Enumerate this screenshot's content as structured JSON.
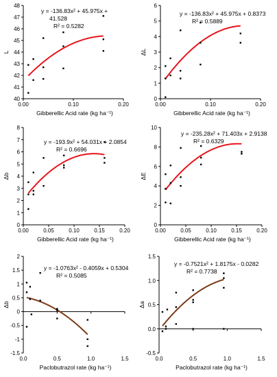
{
  "chart_data": [
    {
      "type": "scatter",
      "panel": "L",
      "xlabel": "Gibberellic Acid rate (kg ha⁻¹)",
      "ylabel": "L",
      "xlim": [
        0,
        0.2
      ],
      "ylim": [
        40,
        48
      ],
      "xticks": [
        0,
        0.1,
        0.2
      ],
      "xtick_labels": [
        "0.00",
        "0.10",
        "0.20"
      ],
      "yticks": [
        40,
        41,
        42,
        43,
        44,
        45,
        46,
        47,
        48
      ],
      "ytick_labels": [
        "40",
        "41",
        "42",
        "43",
        "44",
        "45",
        "46",
        "47",
        "48"
      ],
      "equation": [
        "y = -136.83x² + 45.975x +",
        "41.528"
      ],
      "r2": "R² = 0.5282",
      "fit": {
        "a": -136.83,
        "b": 45.975,
        "c": 41.528,
        "x": [
          0.01,
          0.16
        ],
        "color": "#e8141b"
      },
      "points": [
        [
          0.01,
          40.5
        ],
        [
          0.01,
          42.9
        ],
        [
          0.02,
          41.6
        ],
        [
          0.02,
          43.4
        ],
        [
          0.04,
          41.7
        ],
        [
          0.04,
          42.7
        ],
        [
          0.04,
          45.2
        ],
        [
          0.08,
          42.6
        ],
        [
          0.08,
          44.5
        ],
        [
          0.08,
          45.7
        ],
        [
          0.16,
          44.1
        ],
        [
          0.16,
          45.1
        ],
        [
          0.16,
          47.1
        ]
      ]
    },
    {
      "type": "scatter",
      "panel": "ΔL",
      "xlabel": "Gibberellic Acid rate (kg ha⁻¹)",
      "ylabel": "ΔL",
      "xlim": [
        0,
        0.2
      ],
      "ylim": [
        0,
        6
      ],
      "xticks": [
        0,
        0.1,
        0.2
      ],
      "xtick_labels": [
        "0.00",
        "0.10",
        "0.20"
      ],
      "yticks": [
        0,
        1,
        2,
        3,
        4,
        5,
        6
      ],
      "ytick_labels": [
        "0",
        "1",
        "2",
        "3",
        "4",
        "5",
        "6"
      ],
      "equation": [
        "y = -136.83x² + 45.975x + 0.8373"
      ],
      "r2": "R² = 0.5889",
      "fit": {
        "a": -136.83,
        "b": 45.975,
        "c": 0.8373,
        "x": [
          0.01,
          0.16
        ],
        "color": "#e8141b"
      },
      "points": [
        [
          0.01,
          0.1
        ],
        [
          0.01,
          1.3
        ],
        [
          0.01,
          2.1
        ],
        [
          0.02,
          1.5
        ],
        [
          0.02,
          2.6
        ],
        [
          0.04,
          1.3
        ],
        [
          0.04,
          1.8
        ],
        [
          0.04,
          4.4
        ],
        [
          0.08,
          2.2
        ],
        [
          0.08,
          3.6
        ],
        [
          0.08,
          4.9
        ],
        [
          0.16,
          3.6
        ],
        [
          0.16,
          4.2
        ]
      ]
    },
    {
      "type": "scatter",
      "panel": "Δb",
      "xlabel": "Gibberellic Acid rate (kg ha⁻¹)",
      "ylabel": "Δb",
      "xlim": [
        0,
        0.2
      ],
      "ylim": [
        0,
        8
      ],
      "xticks": [
        0,
        0.05,
        0.1,
        0.15,
        0.2
      ],
      "xtick_labels": [
        "0.00",
        "0.05",
        "0.10",
        "0.15",
        "0.20"
      ],
      "yticks": [
        0,
        1,
        2,
        3,
        4,
        5,
        6,
        7,
        8
      ],
      "ytick_labels": [
        "0",
        "1",
        "2",
        "3",
        "4",
        "5",
        "6",
        "7",
        "8"
      ],
      "equation": [
        "y = -193.9x² + 54.031x + 2.0854"
      ],
      "r2": "R² = 0.6696",
      "fit": {
        "a": -193.9,
        "b": 54.031,
        "c": 2.0854,
        "x": [
          0.01,
          0.16
        ],
        "color": "#e8141b"
      },
      "points": [
        [
          0.01,
          1.3
        ],
        [
          0.01,
          2.5
        ],
        [
          0.01,
          3.5
        ],
        [
          0.02,
          2.5
        ],
        [
          0.02,
          2.8
        ],
        [
          0.02,
          4.3
        ],
        [
          0.04,
          3.2
        ],
        [
          0.04,
          5.5
        ],
        [
          0.08,
          4.7
        ],
        [
          0.08,
          4.9
        ],
        [
          0.08,
          5.7
        ],
        [
          0.16,
          5.1
        ],
        [
          0.16,
          5.5
        ],
        [
          0.16,
          6.8
        ]
      ]
    },
    {
      "type": "scatter",
      "panel": "ΔE",
      "xlabel": "Gibberellic Acid rate (kg ha⁻¹)",
      "ylabel": "ΔE",
      "xlim": [
        0,
        0.2
      ],
      "ylim": [
        0,
        10
      ],
      "xticks": [
        0,
        0.05,
        0.1,
        0.15,
        0.2
      ],
      "xtick_labels": [
        "0.00",
        "0.05",
        "0.10",
        "0.15",
        "0.20"
      ],
      "yticks": [
        0,
        2,
        4,
        6,
        8,
        10
      ],
      "ytick_labels": [
        "0",
        "2",
        "4",
        "6",
        "8",
        "10"
      ],
      "equation": [
        "y = -235.28x² + 71.403x + 2.9138"
      ],
      "r2": "R² = 0.6329",
      "fit": {
        "a": -235.28,
        "b": 71.403,
        "c": 2.9138,
        "x": [
          0.01,
          0.16
        ],
        "color": "#e8141b"
      },
      "points": [
        [
          0.01,
          2.3
        ],
        [
          0.01,
          3.7
        ],
        [
          0.01,
          5.2
        ],
        [
          0.02,
          2.2
        ],
        [
          0.02,
          4.3
        ],
        [
          0.02,
          6.1
        ],
        [
          0.04,
          4.0
        ],
        [
          0.04,
          4.9
        ],
        [
          0.04,
          7.9
        ],
        [
          0.08,
          6.2
        ],
        [
          0.08,
          6.9
        ],
        [
          0.08,
          8.1
        ],
        [
          0.16,
          7.3
        ],
        [
          0.16,
          7.5
        ]
      ]
    },
    {
      "type": "scatter",
      "panel": "Δb",
      "xlabel": "Paclobutrazol rate (kg ha⁻¹)",
      "ylabel": "Δb",
      "xlim": [
        0,
        1.5
      ],
      "ylim": [
        -1.5,
        2
      ],
      "xticks": [
        0,
        0.5,
        1,
        1.5
      ],
      "xtick_labels": [
        "0.0",
        "0.5",
        "1.0",
        "1.5"
      ],
      "yticks": [
        -1.5,
        -1,
        -0.5,
        0,
        0.5,
        1,
        1.5,
        2
      ],
      "ytick_labels": [
        "-1.5",
        "-1",
        "-0.5",
        "0",
        "0.5",
        "1",
        "1.5",
        "2"
      ],
      "equation": [
        "y = -1.0763x² - 0.4059x + 0.5304"
      ],
      "r2": "R² = 0.5085",
      "fit": {
        "a": -1.0763,
        "b": -0.4059,
        "c": 0.5304,
        "x": [
          0.05,
          0.95
        ],
        "color": "#7b3a17"
      },
      "points": [
        [
          0.05,
          -0.55
        ],
        [
          0.05,
          0.7
        ],
        [
          0.05,
          1.05
        ],
        [
          0.1,
          0.45
        ],
        [
          0.1,
          0.9
        ],
        [
          0.12,
          -0.1
        ],
        [
          0.25,
          0.4
        ],
        [
          0.25,
          1.4
        ],
        [
          0.5,
          -0.25
        ],
        [
          0.5,
          0.05
        ],
        [
          0.5,
          0.1
        ],
        [
          0.95,
          -1.25
        ],
        [
          0.95,
          -1.0
        ],
        [
          0.95,
          -0.3
        ]
      ]
    },
    {
      "type": "scatter",
      "panel": "Δa",
      "xlabel": "Paclobutrazol rate (kg ha⁻¹)",
      "ylabel": "Δa",
      "xlim": [
        0,
        1.5
      ],
      "ylim": [
        -0.5,
        1.5
      ],
      "xticks": [
        0,
        0.5,
        1,
        1.5
      ],
      "xtick_labels": [
        "0.0",
        "0.5",
        "1.0",
        "1.5"
      ],
      "yticks": [
        -0.5,
        0,
        0.5,
        1,
        1.5
      ],
      "ytick_labels": [
        "-0.5",
        "0.0",
        "0.5",
        "1.0",
        "1.5"
      ],
      "equation": [
        "y = -0.7521x² + 1.8175x - 0.0282"
      ],
      "r2": "R² = 0.7738",
      "fit": {
        "a": -0.7521,
        "b": 1.8175,
        "c": -0.0282,
        "x": [
          0.05,
          0.95
        ],
        "color": "#7b3a17"
      },
      "points": [
        [
          0.05,
          -0.05
        ],
        [
          0.05,
          0.35
        ],
        [
          0.1,
          0.0
        ],
        [
          0.1,
          0.05
        ],
        [
          0.12,
          0.4
        ],
        [
          0.25,
          0.1
        ],
        [
          0.25,
          0.45
        ],
        [
          0.25,
          0.75
        ],
        [
          0.5,
          0.55
        ],
        [
          0.5,
          0.6
        ],
        [
          0.5,
          0.8
        ],
        [
          0.5,
          0.0
        ],
        [
          0.95,
          0.85
        ],
        [
          0.95,
          1.05
        ],
        [
          0.95,
          1.15
        ],
        [
          0.95,
          0.0
        ]
      ]
    }
  ]
}
